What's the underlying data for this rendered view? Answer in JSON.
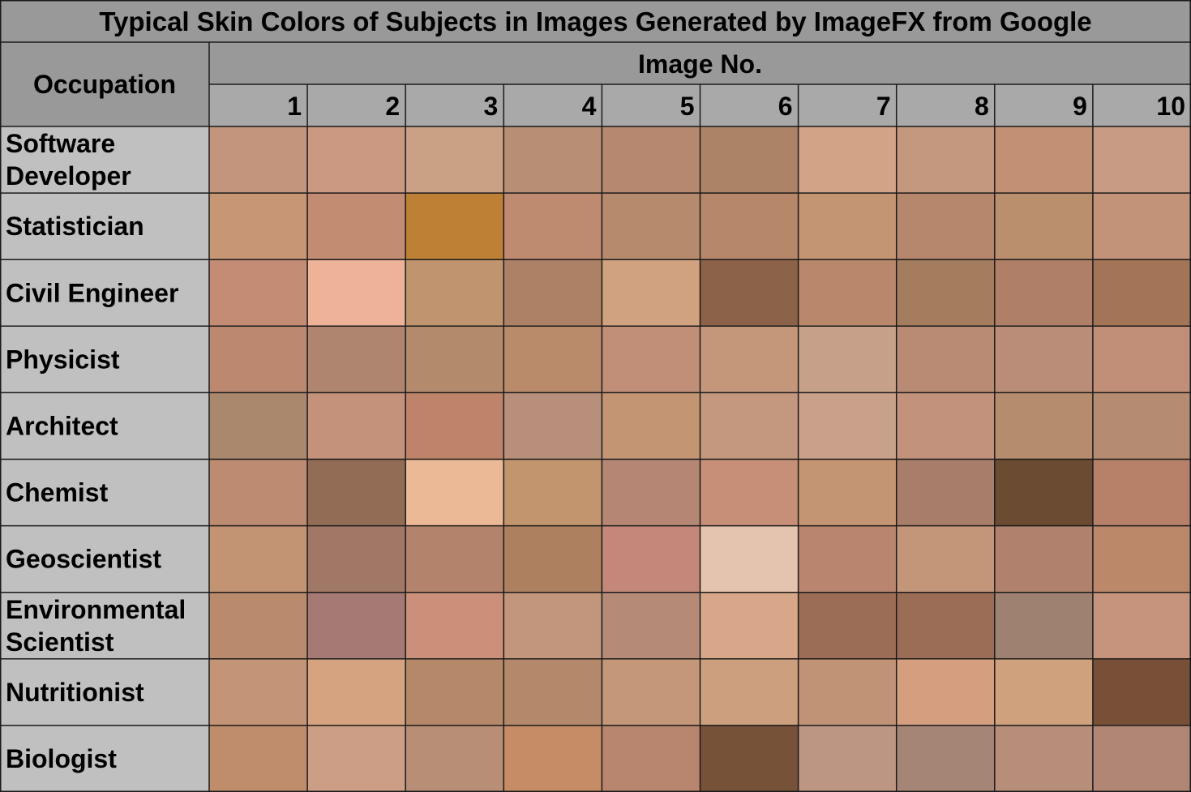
{
  "chart_data": {
    "type": "heatmap",
    "title": "Typical Skin Colors of Subjects in Images Generated by ImageFX from Google",
    "row_header": "Occupation",
    "column_header": "Image No.",
    "columns": [
      "1",
      "2",
      "3",
      "4",
      "5",
      "6",
      "7",
      "8",
      "9",
      "10"
    ],
    "rows": [
      {
        "label": [
          "Software",
          "Developer"
        ],
        "colors": [
          "#C4957D",
          "#CB9982",
          "#CBA185",
          "#B88F75",
          "#B6886F",
          "#AD8367",
          "#D2A384",
          "#C4977F",
          "#C29173",
          "#C89B84"
        ]
      },
      {
        "label": [
          "Statistician"
        ],
        "colors": [
          "#C79675",
          "#C18C71",
          "#BE8034",
          "#BE8A70",
          "#B68A6D",
          "#B7876A",
          "#C49572",
          "#B6876D",
          "#BA8F6D",
          "#C29378"
        ]
      },
      {
        "label": [
          "Civil Engineer"
        ],
        "colors": [
          "#C48C75",
          "#EDB298",
          "#C0946E",
          "#AD8166",
          "#D1A27F",
          "#8C6248",
          "#B9886A",
          "#A47C5E",
          "#B07F68",
          "#A47456"
        ]
      },
      {
        "label": [
          "Physicist"
        ],
        "colors": [
          "#BC8870",
          "#B08570",
          "#B48A6D",
          "#B98B6B",
          "#C18E78",
          "#C4977B",
          "#C6A089",
          "#B98A74",
          "#B98D77",
          "#C18F77"
        ]
      },
      {
        "label": [
          "Architect"
        ],
        "colors": [
          "#A9886E",
          "#C4917A",
          "#BE8469",
          "#B78F7A",
          "#C39573",
          "#C4987E",
          "#C9A18A",
          "#C3927C",
          "#B68C6E",
          "#B58C72"
        ]
      },
      {
        "label": [
          "Chemist"
        ],
        "colors": [
          "#BD8A72",
          "#936C56",
          "#EBB996",
          "#C2956F",
          "#B58674",
          "#C78F78",
          "#C49573",
          "#A87D6A",
          "#6B4B31",
          "#B68168"
        ]
      },
      {
        "label": [
          "Geoscientist"
        ],
        "colors": [
          "#C39474",
          "#A17766",
          "#B4836B",
          "#AD805F",
          "#C4887A",
          "#E4C4AE",
          "#B9856F",
          "#C39679",
          "#B0826E",
          "#BB8869"
        ]
      },
      {
        "label": [
          "Environmental",
          "Scientist"
        ],
        "colors": [
          "#BA8A6D",
          "#A57A74",
          "#CA9079",
          "#C2957D",
          "#B58B78",
          "#D8A78A",
          "#9C6D56",
          "#9C6D56",
          "#9E8170",
          "#C6937D"
        ]
      },
      {
        "label": [
          "Nutritionist"
        ],
        "colors": [
          "#C49477",
          "#D6A380",
          "#B48869",
          "#B4896B",
          "#C49778",
          "#CCA07F",
          "#C09276",
          "#D59F7F",
          "#CFA17D",
          "#775037"
        ]
      },
      {
        "label": [
          "Biologist"
        ],
        "colors": [
          "#C08D6C",
          "#CC9E85",
          "#B98E76",
          "#C68C66",
          "#B8856F",
          "#765239",
          "#BC9583",
          "#A58676",
          "#B68E79",
          "#B18675"
        ]
      }
    ],
    "header_colors": {
      "title_bg": "#999999",
      "header_bg": "#A9A9A9",
      "label_bg": "#C0C0C0",
      "grid": "#1A1A1A"
    }
  }
}
